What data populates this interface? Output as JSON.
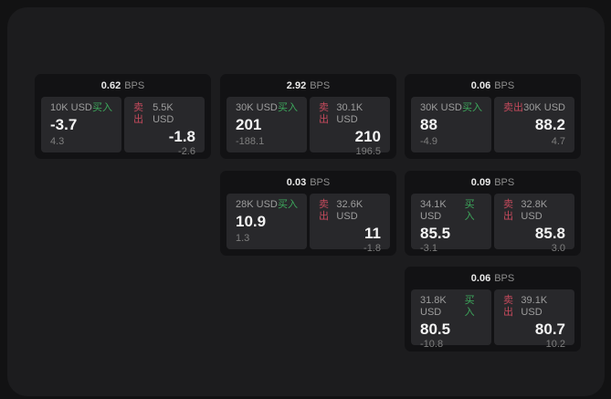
{
  "labels": {
    "bps": "BPS",
    "buy": "买入",
    "sell": "卖出"
  },
  "colors": {
    "buy_green": "#3da85c",
    "sell_red": "#c44a5c",
    "surface": "#1c1c1e",
    "card": "#121214",
    "tile": "#28282b"
  },
  "cards": [
    {
      "bps": "0.62",
      "buy": {
        "amount": "10K USD",
        "price": "-3.7",
        "delta": "4.3"
      },
      "sell": {
        "amount": "5.5K USD",
        "price": "-1.8",
        "delta": "-2.6"
      }
    },
    {
      "bps": "2.92",
      "buy": {
        "amount": "30K USD",
        "price": "201",
        "delta": "-188.1"
      },
      "sell": {
        "amount": "30.1K USD",
        "price": "210",
        "delta": "196.5"
      }
    },
    {
      "bps": "0.06",
      "buy": {
        "amount": "30K USD",
        "price": "88",
        "delta": "-4.9"
      },
      "sell": {
        "amount": "30K USD",
        "price": "88.2",
        "delta": "4.7"
      }
    },
    {
      "bps": "0.03",
      "buy": {
        "amount": "28K USD",
        "price": "10.9",
        "delta": "1.3"
      },
      "sell": {
        "amount": "32.6K USD",
        "price": "11",
        "delta": "-1.8"
      }
    },
    {
      "bps": "0.09",
      "buy": {
        "amount": "34.1K USD",
        "price": "85.5",
        "delta": "-3.1"
      },
      "sell": {
        "amount": "32.8K USD",
        "price": "85.8",
        "delta": "3.0"
      }
    },
    {
      "bps": "0.06",
      "buy": {
        "amount": "31.8K USD",
        "price": "80.5",
        "delta": "-10.8"
      },
      "sell": {
        "amount": "39.1K USD",
        "price": "80.7",
        "delta": "10.2"
      }
    }
  ]
}
